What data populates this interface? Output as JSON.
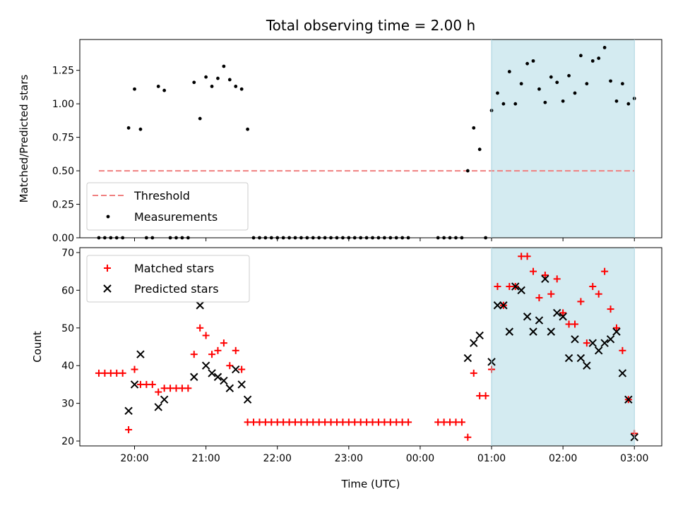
{
  "chart_data": [
    {
      "type": "scatter",
      "title": "Total observing time = 2.00 h",
      "xlabel": "",
      "ylabel": "Matched/Predicted stars",
      "xlim": [
        "19:14",
        "03:23"
      ],
      "ylim": [
        0,
        1.48
      ],
      "yticks": [
        "0.00",
        "0.25",
        "0.50",
        "0.75",
        "1.00",
        "1.25"
      ],
      "shaded_interval": [
        "01:00",
        "03:00"
      ],
      "shade_color": "#d4ebf1",
      "legend_location": "lower-left",
      "threshold": {
        "name": "Threshold",
        "value": 0.5,
        "x_range": [
          "19:30",
          "03:00"
        ],
        "color": "#f08080",
        "style": "dashed"
      },
      "series": [
        {
          "name": "Measurements",
          "color": "#000000",
          "marker": "dot",
          "points": [
            [
              "19:30",
              0.0
            ],
            [
              "19:35",
              0.0
            ],
            [
              "19:40",
              0.0
            ],
            [
              "19:45",
              0.0
            ],
            [
              "19:50",
              0.0
            ],
            [
              "19:55",
              0.82
            ],
            [
              "20:00",
              1.11
            ],
            [
              "20:05",
              0.81
            ],
            [
              "20:10",
              0.0
            ],
            [
              "20:15",
              0.0
            ],
            [
              "20:20",
              1.13
            ],
            [
              "20:25",
              1.1
            ],
            [
              "20:30",
              0.0
            ],
            [
              "20:35",
              0.0
            ],
            [
              "20:40",
              0.0
            ],
            [
              "20:45",
              0.0
            ],
            [
              "20:50",
              1.16
            ],
            [
              "20:55",
              0.89
            ],
            [
              "21:00",
              1.2
            ],
            [
              "21:05",
              1.13
            ],
            [
              "21:10",
              1.19
            ],
            [
              "21:15",
              1.28
            ],
            [
              "21:20",
              1.18
            ],
            [
              "21:25",
              1.13
            ],
            [
              "21:30",
              1.11
            ],
            [
              "21:35",
              0.81
            ],
            [
              "21:40",
              0.0
            ],
            [
              "21:45",
              0.0
            ],
            [
              "21:50",
              0.0
            ],
            [
              "21:55",
              0.0
            ],
            [
              "22:00",
              0.0
            ],
            [
              "22:05",
              0.0
            ],
            [
              "22:10",
              0.0
            ],
            [
              "22:15",
              0.0
            ],
            [
              "22:20",
              0.0
            ],
            [
              "22:25",
              0.0
            ],
            [
              "22:30",
              0.0
            ],
            [
              "22:35",
              0.0
            ],
            [
              "22:40",
              0.0
            ],
            [
              "22:45",
              0.0
            ],
            [
              "22:50",
              0.0
            ],
            [
              "22:55",
              0.0
            ],
            [
              "23:00",
              0.0
            ],
            [
              "23:05",
              0.0
            ],
            [
              "23:10",
              0.0
            ],
            [
              "23:15",
              0.0
            ],
            [
              "23:20",
              0.0
            ],
            [
              "23:25",
              0.0
            ],
            [
              "23:30",
              0.0
            ],
            [
              "23:35",
              0.0
            ],
            [
              "23:40",
              0.0
            ],
            [
              "23:45",
              0.0
            ],
            [
              "23:50",
              0.0
            ],
            [
              "00:15",
              0.0
            ],
            [
              "00:20",
              0.0
            ],
            [
              "00:25",
              0.0
            ],
            [
              "00:30",
              0.0
            ],
            [
              "00:35",
              0.0
            ],
            [
              "00:40",
              0.5
            ],
            [
              "00:45",
              0.82
            ],
            [
              "00:50",
              0.66
            ],
            [
              "00:55",
              0.0
            ],
            [
              "01:00",
              0.95
            ],
            [
              "01:05",
              1.08
            ],
            [
              "01:10",
              1.0
            ],
            [
              "01:15",
              1.24
            ],
            [
              "01:20",
              1.0
            ],
            [
              "01:25",
              1.15
            ],
            [
              "01:30",
              1.3
            ],
            [
              "01:35",
              1.32
            ],
            [
              "01:40",
              1.11
            ],
            [
              "01:45",
              1.01
            ],
            [
              "01:50",
              1.2
            ],
            [
              "01:55",
              1.16
            ],
            [
              "02:00",
              1.02
            ],
            [
              "02:05",
              1.21
            ],
            [
              "02:10",
              1.08
            ],
            [
              "02:15",
              1.36
            ],
            [
              "02:20",
              1.15
            ],
            [
              "02:25",
              1.32
            ],
            [
              "02:30",
              1.34
            ],
            [
              "02:35",
              1.42
            ],
            [
              "02:40",
              1.17
            ],
            [
              "02:45",
              1.02
            ],
            [
              "02:50",
              1.15
            ],
            [
              "02:55",
              1.0
            ],
            [
              "03:00",
              1.04
            ]
          ]
        }
      ]
    },
    {
      "type": "scatter",
      "title": "",
      "xlabel": "Time (UTC)",
      "ylabel": "Count",
      "xlim": [
        "19:14",
        "03:23"
      ],
      "ylim": [
        18.7,
        71.3
      ],
      "yticks": [
        "20",
        "30",
        "40",
        "50",
        "60",
        "70"
      ],
      "xticks": [
        "20:00",
        "21:00",
        "22:00",
        "23:00",
        "00:00",
        "01:00",
        "02:00",
        "03:00"
      ],
      "shaded_interval": [
        "01:00",
        "03:00"
      ],
      "shade_color": "#d4ebf1",
      "legend_location": "upper-left",
      "series": [
        {
          "name": "Matched stars",
          "color": "#ff0000",
          "marker": "plus",
          "points": [
            [
              "19:30",
              38
            ],
            [
              "19:35",
              38
            ],
            [
              "19:40",
              38
            ],
            [
              "19:45",
              38
            ],
            [
              "19:50",
              38
            ],
            [
              "19:55",
              23
            ],
            [
              "20:00",
              39
            ],
            [
              "20:05",
              35
            ],
            [
              "20:10",
              35
            ],
            [
              "20:15",
              35
            ],
            [
              "20:20",
              33
            ],
            [
              "20:25",
              34
            ],
            [
              "20:30",
              34
            ],
            [
              "20:35",
              34
            ],
            [
              "20:40",
              34
            ],
            [
              "20:45",
              34
            ],
            [
              "20:50",
              43
            ],
            [
              "20:55",
              50
            ],
            [
              "21:00",
              48
            ],
            [
              "21:05",
              43
            ],
            [
              "21:10",
              44
            ],
            [
              "21:15",
              46
            ],
            [
              "21:20",
              40
            ],
            [
              "21:25",
              44
            ],
            [
              "21:30",
              39
            ],
            [
              "21:35",
              25
            ],
            [
              "21:40",
              25
            ],
            [
              "21:45",
              25
            ],
            [
              "21:50",
              25
            ],
            [
              "21:55",
              25
            ],
            [
              "22:00",
              25
            ],
            [
              "22:05",
              25
            ],
            [
              "22:10",
              25
            ],
            [
              "22:15",
              25
            ],
            [
              "22:20",
              25
            ],
            [
              "22:25",
              25
            ],
            [
              "22:30",
              25
            ],
            [
              "22:35",
              25
            ],
            [
              "22:40",
              25
            ],
            [
              "22:45",
              25
            ],
            [
              "22:50",
              25
            ],
            [
              "22:55",
              25
            ],
            [
              "23:00",
              25
            ],
            [
              "23:05",
              25
            ],
            [
              "23:10",
              25
            ],
            [
              "23:15",
              25
            ],
            [
              "23:20",
              25
            ],
            [
              "23:25",
              25
            ],
            [
              "23:30",
              25
            ],
            [
              "23:35",
              25
            ],
            [
              "23:40",
              25
            ],
            [
              "23:45",
              25
            ],
            [
              "23:50",
              25
            ],
            [
              "00:15",
              25
            ],
            [
              "00:20",
              25
            ],
            [
              "00:25",
              25
            ],
            [
              "00:30",
              25
            ],
            [
              "00:35",
              25
            ],
            [
              "00:40",
              21
            ],
            [
              "00:45",
              38
            ],
            [
              "00:50",
              32
            ],
            [
              "00:55",
              32
            ],
            [
              "01:00",
              39
            ],
            [
              "01:05",
              61
            ],
            [
              "01:10",
              56
            ],
            [
              "01:15",
              61
            ],
            [
              "01:20",
              61
            ],
            [
              "01:25",
              69
            ],
            [
              "01:30",
              69
            ],
            [
              "01:35",
              65
            ],
            [
              "01:40",
              58
            ],
            [
              "01:45",
              64
            ],
            [
              "01:50",
              59
            ],
            [
              "01:55",
              63
            ],
            [
              "02:00",
              54
            ],
            [
              "02:05",
              51
            ],
            [
              "02:10",
              51
            ],
            [
              "02:15",
              57
            ],
            [
              "02:20",
              46
            ],
            [
              "02:25",
              61
            ],
            [
              "02:30",
              59
            ],
            [
              "02:35",
              65
            ],
            [
              "02:40",
              55
            ],
            [
              "02:45",
              50
            ],
            [
              "02:50",
              44
            ],
            [
              "02:55",
              31
            ],
            [
              "03:00",
              22
            ]
          ]
        },
        {
          "name": "Predicted stars",
          "color": "#000000",
          "marker": "x",
          "points": [
            [
              "19:55",
              28
            ],
            [
              "20:00",
              35
            ],
            [
              "20:05",
              43
            ],
            [
              "20:20",
              29
            ],
            [
              "20:25",
              31
            ],
            [
              "20:50",
              37
            ],
            [
              "20:55",
              56
            ],
            [
              "21:00",
              40
            ],
            [
              "21:05",
              38
            ],
            [
              "21:10",
              37
            ],
            [
              "21:15",
              36
            ],
            [
              "21:20",
              34
            ],
            [
              "21:25",
              39
            ],
            [
              "21:30",
              35
            ],
            [
              "21:35",
              31
            ],
            [
              "00:40",
              42
            ],
            [
              "00:45",
              46
            ],
            [
              "00:50",
              48
            ],
            [
              "01:00",
              41
            ],
            [
              "01:05",
              56
            ],
            [
              "01:10",
              56
            ],
            [
              "01:15",
              49
            ],
            [
              "01:20",
              61
            ],
            [
              "01:25",
              60
            ],
            [
              "01:30",
              53
            ],
            [
              "01:35",
              49
            ],
            [
              "01:40",
              52
            ],
            [
              "01:45",
              63
            ],
            [
              "01:50",
              49
            ],
            [
              "01:55",
              54
            ],
            [
              "02:00",
              53
            ],
            [
              "02:05",
              42
            ],
            [
              "02:10",
              47
            ],
            [
              "02:15",
              42
            ],
            [
              "02:20",
              40
            ],
            [
              "02:25",
              46
            ],
            [
              "02:30",
              44
            ],
            [
              "02:35",
              46
            ],
            [
              "02:40",
              47
            ],
            [
              "02:45",
              49
            ],
            [
              "02:50",
              38
            ],
            [
              "02:55",
              31
            ],
            [
              "03:00",
              21
            ]
          ]
        }
      ]
    }
  ]
}
